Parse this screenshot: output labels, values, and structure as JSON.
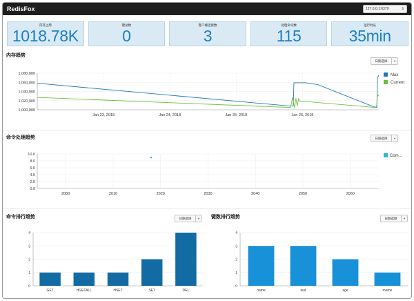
{
  "app": {
    "brand": "RedisFox",
    "server": "127.0.0.1:6379"
  },
  "stats": [
    {
      "label": "内存占用",
      "value": "1018.78K"
    },
    {
      "label": "键总数",
      "value": "0"
    },
    {
      "label": "客户端连接数",
      "value": "3"
    },
    {
      "label": "处理命令数",
      "value": "115"
    },
    {
      "label": "运行时长",
      "value": "35min"
    }
  ],
  "picker_label": "日期选择",
  "sections": {
    "memory": "内存趋势",
    "commands": "命令处理趋势",
    "cmd_rank": "命令排行趋势",
    "key_rank": "键数排行趋势"
  },
  "colors": {
    "max": "#1f77b4",
    "current": "#6cbf3c",
    "commands": "#29b6d8",
    "cmd_bars": "#136ba3",
    "key_bars": "#1991d9"
  },
  "chart_data": [
    {
      "id": "memory",
      "type": "line",
      "yticks": [
        "1,000,000",
        "1,020,000",
        "1,040,000",
        "1,060,000",
        "1,080,000"
      ],
      "ylim": [
        1000000,
        1080000
      ],
      "xticks": [
        "Jan 23, 2018",
        "Jan 24, 2018",
        "Jan 25, 2018",
        "Jan 26, 2018"
      ],
      "xlim": [
        -1.0,
        4.15
      ],
      "xtick_values": [
        0,
        1,
        2,
        3
      ],
      "legend_position": "right",
      "series": [
        {
          "name": "Max",
          "color": "#1f77b4",
          "points": [
            [
              -1.0,
              1058000
            ],
            [
              2.82,
              1008000
            ],
            [
              2.86,
              1009000
            ],
            [
              2.87,
              1059000
            ],
            [
              3.05,
              1059000
            ],
            [
              3.23,
              1055000
            ],
            [
              4.1,
              1005000
            ],
            [
              4.12,
              1005000
            ],
            [
              4.13,
              1070000
            ],
            [
              4.15,
              1076000
            ]
          ]
        },
        {
          "name": "Current",
          "color": "#6cbf3c",
          "points": [
            [
              -1.0,
              1027000
            ],
            [
              2.82,
              1005000
            ],
            [
              2.85,
              1027000
            ],
            [
              2.88,
              1005000
            ],
            [
              2.9,
              1025000
            ],
            [
              2.92,
              1008000
            ],
            [
              2.94,
              1024000
            ],
            [
              2.96,
              1018000
            ],
            [
              3.05,
              1018000
            ],
            [
              4.1,
              1005000
            ],
            [
              4.12,
              1010000
            ],
            [
              4.13,
              1033000
            ],
            [
              4.15,
              1030000
            ]
          ]
        }
      ]
    },
    {
      "id": "commands",
      "type": "scatter",
      "yticks": [
        "0.0",
        "2.0",
        "4.0",
        "6.0",
        "8.0",
        "10.0"
      ],
      "ylim": [
        0,
        10
      ],
      "xticks": [
        "2000",
        "2010",
        "2020",
        "2030",
        "2040",
        "2050",
        "2060"
      ],
      "xlim": [
        1994,
        2066
      ],
      "legend_position": "right",
      "series": [
        {
          "name": "Com...",
          "color": "#29b6d8",
          "points": [
            [
              2018,
              9
            ]
          ]
        }
      ]
    },
    {
      "id": "cmd_rank",
      "type": "bar",
      "categories": [
        "GET",
        "HGETALL",
        "HSET",
        "SET",
        "DEL"
      ],
      "values": [
        1,
        1,
        1,
        2,
        4
      ],
      "yticks": [
        "0",
        "1",
        "2",
        "3",
        "4"
      ],
      "ylim": [
        0,
        4
      ],
      "color": "#136ba3"
    },
    {
      "id": "key_rank",
      "type": "bar",
      "categories": [
        "name",
        "test",
        "age",
        "mame"
      ],
      "values": [
        3,
        3,
        2,
        1
      ],
      "yticks": [
        "0",
        "1",
        "2",
        "3",
        "4"
      ],
      "ylim": [
        0,
        4
      ],
      "color": "#1991d9"
    }
  ]
}
